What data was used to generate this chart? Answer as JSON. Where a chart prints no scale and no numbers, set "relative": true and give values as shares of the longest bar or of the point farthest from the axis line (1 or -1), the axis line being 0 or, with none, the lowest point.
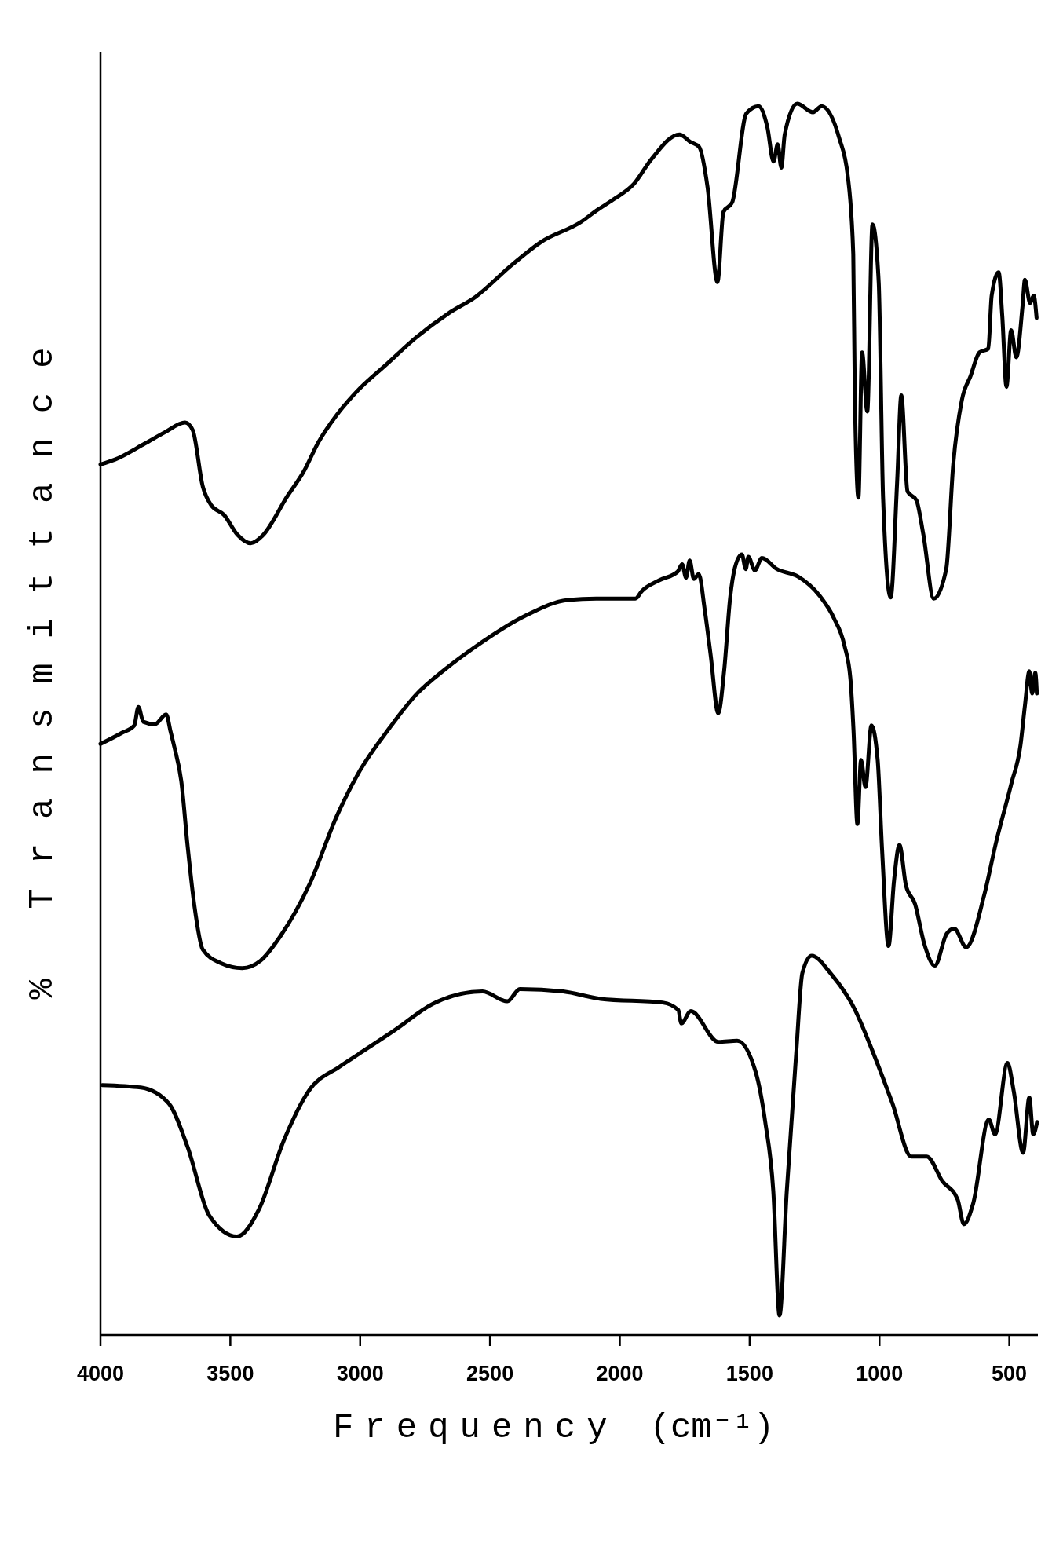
{
  "chart_data": {
    "type": "line",
    "xlabel": "Frequency (cm⁻¹)",
    "ylabel": "% Transmittance",
    "relative": true,
    "xlim": [
      4000,
      390
    ],
    "xticks": [
      4000,
      3500,
      3000,
      2500,
      2000,
      1500,
      1000,
      500
    ],
    "series": [
      {
        "color": "#000000",
        "x": [
          4000,
          3944,
          3829,
          3753,
          3674,
          3645,
          3606,
          3574,
          3524,
          3473,
          3422,
          3377,
          3281,
          3218,
          3161,
          3091,
          3014,
          2900,
          2785,
          2658,
          2556,
          2416,
          2301,
          2149,
          2091,
          2026,
          1945,
          1878,
          1770,
          1729,
          1695,
          1662,
          1624,
          1601,
          1567,
          1513,
          1466,
          1432,
          1408,
          1392,
          1378,
          1365,
          1317,
          1256,
          1223,
          1155,
          1122,
          1101,
          1095,
          1081,
          1067,
          1047,
          1027,
          1003,
          986,
          957,
          932,
          916,
          892,
          858,
          831,
          791,
          743,
          716,
          683,
          649,
          615,
          581,
          568,
          541,
          527,
          511,
          493,
          473,
          449,
          440,
          420,
          406,
          395
        ],
        "values": [
          0.707,
          0.711,
          0.724,
          0.733,
          0.741,
          0.735,
          0.689,
          0.674,
          0.666,
          0.65,
          0.643,
          0.649,
          0.681,
          0.701,
          0.725,
          0.747,
          0.766,
          0.788,
          0.81,
          0.83,
          0.843,
          0.869,
          0.888,
          0.904,
          0.913,
          0.922,
          0.935,
          0.955,
          0.975,
          0.969,
          0.965,
          0.932,
          0.855,
          0.912,
          0.92,
          0.992,
          0.998,
          0.981,
          0.953,
          0.967,
          0.948,
          0.975,
          1.0,
          0.993,
          0.998,
          0.972,
          0.941,
          0.878,
          0.764,
          0.68,
          0.798,
          0.75,
          0.902,
          0.855,
          0.679,
          0.599,
          0.693,
          0.763,
          0.685,
          0.678,
          0.65,
          0.598,
          0.622,
          0.707,
          0.759,
          0.779,
          0.798,
          0.801,
          0.844,
          0.863,
          0.827,
          0.77,
          0.816,
          0.794,
          0.836,
          0.857,
          0.838,
          0.844,
          0.826
        ]
      },
      {
        "color": "#000000",
        "x": [
          4000,
          3918,
          3870,
          3854,
          3835,
          3791,
          3747,
          3730,
          3715,
          3689,
          3664,
          3638,
          3606,
          3536,
          3454,
          3384,
          3307,
          3193,
          3091,
          3002,
          2887,
          2785,
          2671,
          2556,
          2365,
          2199,
          2091,
          1940,
          1916,
          1847,
          1777,
          1760,
          1745,
          1731,
          1715,
          1696,
          1673,
          1650,
          1621,
          1598,
          1575,
          1557,
          1530,
          1515,
          1505,
          1480,
          1453,
          1395,
          1314,
          1233,
          1175,
          1135,
          1112,
          1100,
          1085,
          1071,
          1054,
          1031,
          1007,
          990,
          965,
          944,
          923,
          898,
          863,
          828,
          787,
          741,
          712,
          666,
          597,
          550,
          492,
          457,
          440,
          423,
          412,
          400,
          394
        ],
        "values": [
          0.48,
          0.489,
          0.495,
          0.51,
          0.498,
          0.496,
          0.504,
          0.49,
          0.477,
          0.45,
          0.396,
          0.348,
          0.313,
          0.302,
          0.298,
          0.304,
          0.324,
          0.367,
          0.421,
          0.458,
          0.493,
          0.52,
          0.541,
          0.559,
          0.584,
          0.597,
          0.598,
          0.598,
          0.604,
          0.613,
          0.62,
          0.626,
          0.615,
          0.629,
          0.614,
          0.618,
          0.589,
          0.552,
          0.505,
          0.54,
          0.599,
          0.623,
          0.634,
          0.622,
          0.632,
          0.621,
          0.631,
          0.622,
          0.616,
          0.601,
          0.582,
          0.56,
          0.533,
          0.491,
          0.415,
          0.467,
          0.445,
          0.495,
          0.467,
          0.394,
          0.316,
          0.369,
          0.398,
          0.365,
          0.35,
          0.318,
          0.3,
          0.326,
          0.33,
          0.315,
          0.357,
          0.401,
          0.448,
          0.479,
          0.511,
          0.539,
          0.521,
          0.538,
          0.521
        ]
      },
      {
        "color": "#000000",
        "x": [
          3993,
          3845,
          3737,
          3665,
          3581,
          3474,
          3390,
          3294,
          3199,
          3079,
          3007,
          2864,
          2720,
          2529,
          2433,
          2385,
          2218,
          2074,
          1835,
          1775,
          1763,
          1727,
          1620,
          1548,
          1476,
          1440,
          1409,
          1385,
          1357,
          1321,
          1297,
          1261,
          1189,
          1094,
          1022,
          950,
          878,
          818,
          758,
          699,
          675,
          639,
          579,
          555,
          507,
          483,
          447,
          423,
          408,
          393
        ],
        "values": [
          0.203,
          0.201,
          0.188,
          0.153,
          0.097,
          0.08,
          0.102,
          0.158,
          0.198,
          0.218,
          0.228,
          0.248,
          0.269,
          0.279,
          0.271,
          0.281,
          0.279,
          0.273,
          0.27,
          0.264,
          0.253,
          0.263,
          0.238,
          0.239,
          0.213,
          0.173,
          0.117,
          0.016,
          0.117,
          0.228,
          0.294,
          0.308,
          0.294,
          0.264,
          0.228,
          0.188,
          0.145,
          0.145,
          0.125,
          0.11,
          0.09,
          0.107,
          0.175,
          0.163,
          0.221,
          0.198,
          0.148,
          0.193,
          0.163,
          0.173
        ]
      }
    ]
  }
}
